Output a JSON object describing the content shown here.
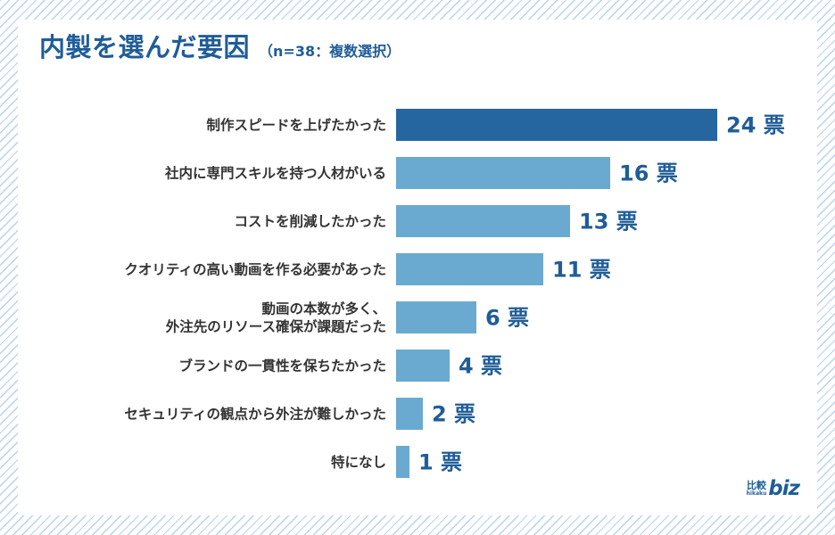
{
  "title": "内製を選んだ要因",
  "subtitle": "（n=38：複数選択）",
  "logo": {
    "kanji": "比較",
    "romaji": "hikaku",
    "biz": "biz"
  },
  "colors": {
    "accent": "#1f5d98",
    "top_bar": "#2566a0",
    "bar": "#6aa9d0",
    "label_text": "#333333"
  },
  "chart_data": {
    "type": "bar",
    "orientation": "horizontal",
    "title": "内製を選んだ要因",
    "subtitle": "（n=38：複数選択）",
    "unit": "票",
    "categories": [
      [
        "制作スピードを上げたかった"
      ],
      [
        "社内に専門スキルを持つ人材がいる"
      ],
      [
        "コストを削減したかった"
      ],
      [
        "クオリティの高い動画を作る必要があった"
      ],
      [
        "動画の本数が多く、",
        "外注先のリソース確保が課題だった"
      ],
      [
        "ブランドの一貫性を保ちたかった"
      ],
      [
        "セキュリティの観点から外注が難しかった"
      ],
      [
        "特になし"
      ]
    ],
    "values": [
      24,
      16,
      13,
      11,
      6,
      4,
      2,
      1
    ],
    "value_labels": [
      "24 票",
      "16 票",
      "13 票",
      "11 票",
      "6 票",
      "4 票",
      "2 票",
      "1 票"
    ],
    "highlight_index": 0,
    "grid": false,
    "legend": "none"
  }
}
